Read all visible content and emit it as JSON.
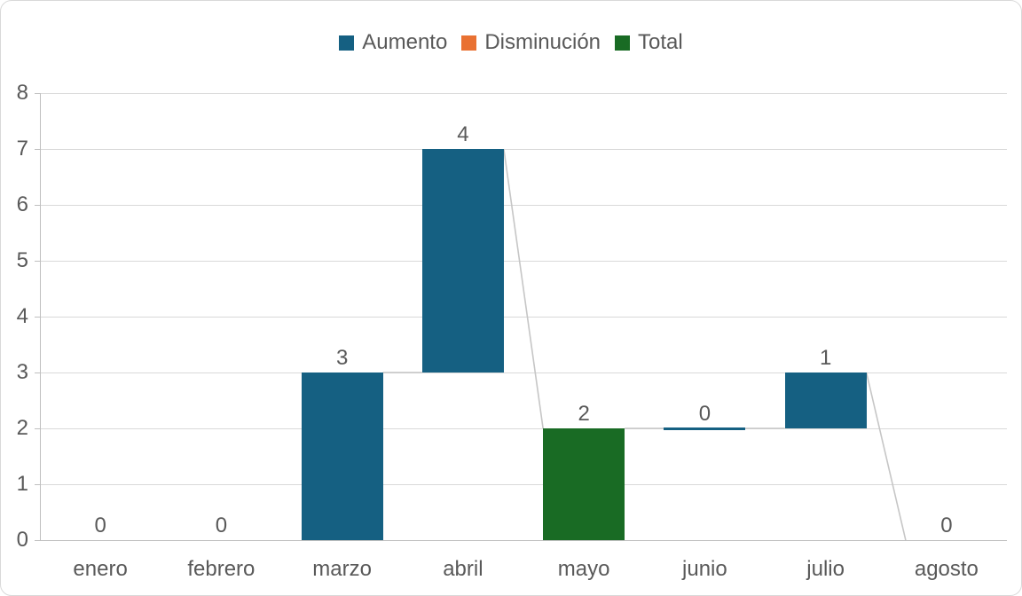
{
  "chart_data": {
    "type": "waterfall",
    "title": "",
    "categories": [
      "enero",
      "febrero",
      "marzo",
      "abril",
      "mayo",
      "junio",
      "julio",
      "agosto"
    ],
    "series": [
      {
        "name": "Aumento",
        "color": "#156082"
      },
      {
        "name": "Disminución",
        "color": "#E97132"
      },
      {
        "name": "Total",
        "color": "#196B24"
      }
    ],
    "values": [
      0,
      0,
      3,
      4,
      2,
      0,
      1,
      0
    ],
    "bars": [
      {
        "category": "enero",
        "series": "Aumento",
        "label": "0",
        "from": 0,
        "to": 0,
        "show_zero_line": false
      },
      {
        "category": "febrero",
        "series": "Aumento",
        "label": "0",
        "from": 0,
        "to": 0,
        "show_zero_line": false
      },
      {
        "category": "marzo",
        "series": "Aumento",
        "label": "3",
        "from": 0,
        "to": 3,
        "show_zero_line": false
      },
      {
        "category": "abril",
        "series": "Aumento",
        "label": "4",
        "from": 3,
        "to": 7,
        "show_zero_line": false
      },
      {
        "category": "mayo",
        "series": "Total",
        "label": "2",
        "from": 0,
        "to": 2,
        "show_zero_line": false
      },
      {
        "category": "junio",
        "series": "Aumento",
        "label": "0",
        "from": 2,
        "to": 2,
        "show_zero_line": true
      },
      {
        "category": "julio",
        "series": "Aumento",
        "label": "1",
        "from": 2,
        "to": 3,
        "show_zero_line": false
      },
      {
        "category": "agosto",
        "series": "Aumento",
        "label": "0",
        "from": 0,
        "to": 0,
        "show_zero_line": false
      }
    ],
    "connectors": [
      {
        "from_cat": "marzo",
        "from_y": 3,
        "to_cat": "abril",
        "to_y": 3
      },
      {
        "from_cat": "abril",
        "from_y": 7,
        "to_cat": "mayo",
        "to_y": 2
      },
      {
        "from_cat": "mayo",
        "from_y": 2,
        "to_cat": "julio",
        "to_y": 2
      },
      {
        "from_cat": "julio",
        "from_y": 3,
        "to_cat": "agosto",
        "to_y": 0
      }
    ],
    "xlabel": "",
    "ylabel": "",
    "ylim": [
      0,
      8
    ],
    "yticks": [
      "0",
      "1",
      "2",
      "3",
      "4",
      "5",
      "6",
      "7",
      "8"
    ],
    "grid": true,
    "legend_position": "top-center"
  },
  "colors": {
    "background": "#FFFFFF",
    "frame_border": "#D9D9D9",
    "grid": "#D9D9D9",
    "axis": "#BFBFBF",
    "connector": "#C6C6C6",
    "label_text": "#595959",
    "tick_text": "#595959"
  }
}
